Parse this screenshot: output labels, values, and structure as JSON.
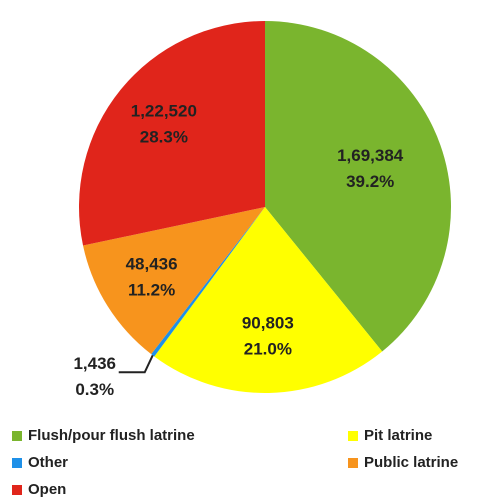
{
  "chart_data": {
    "type": "pie",
    "categories": [
      "Flush/pour flush latrine",
      "Pit latrine",
      "Other",
      "Public latrine",
      "Open"
    ],
    "values": [
      169384,
      90803,
      1436,
      48436,
      122520
    ],
    "value_labels": [
      "1,69,384",
      "90,803",
      "1,436",
      "48,436",
      "1,22,520"
    ],
    "percent_labels": [
      "39.2%",
      "21.0%",
      "0.3%",
      "11.2%",
      "28.3%"
    ],
    "colors": [
      "#7ab52e",
      "#ffff00",
      "#1e90e8",
      "#f7941d",
      "#e0251b"
    ],
    "legend": "bottom"
  }
}
